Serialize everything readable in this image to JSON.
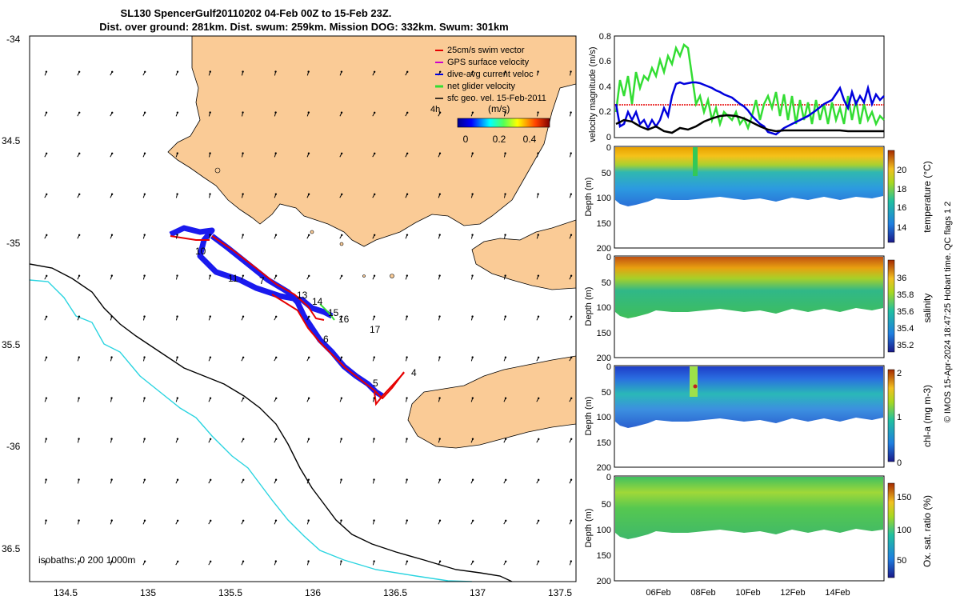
{
  "header": {
    "line1": "SL130 SpencerGulf20110202 04-Feb 00Z to 15-Feb 23Z.",
    "line2": "Dist. over ground: 281km. Dist. swum: 259km. Mission DOG: 332km. Swum: 301km"
  },
  "map": {
    "lon_ticks": [
      "134.5",
      "135",
      "135.5",
      "136",
      "136.5",
      "137",
      "137.5"
    ],
    "lat_ticks": [
      "-34",
      "34.5",
      "-35",
      "35.5",
      "-36",
      "36.5"
    ],
    "isobath_label": "isobaths: 0   200  1000m",
    "legend": [
      {
        "label": "25cm/s swim vector",
        "color": "#e60000"
      },
      {
        "label": "GPS surface velocity",
        "color": "#cc00cc"
      },
      {
        "label": "dive-avg current veloc",
        "color": "#0000dd"
      },
      {
        "label": "net glider velocity",
        "color": "#33dd33"
      },
      {
        "label": "sfc geo. vel. 15-Feb-2011",
        "color": "#000000"
      }
    ],
    "colorbar": {
      "interval": "4h",
      "unit": "(m/s)",
      "ticks": [
        "0",
        "0.2",
        "0.4"
      ]
    },
    "day_labels": [
      "4",
      "5",
      "6",
      "7",
      "10",
      "11",
      "13",
      "14",
      "15",
      "16",
      "17"
    ],
    "colors": {
      "land": "#facb96",
      "isobath_200": "#000000",
      "isobath_1000": "#2ad4e0",
      "glider_track": "#1a1aee"
    }
  },
  "panels": {
    "velocity": {
      "ylabel": "velocity magnitude (m/s)",
      "yticks": [
        "0",
        "0.2",
        "0.4",
        "0.6",
        "0.8"
      ]
    },
    "depth_ylabel": "Depth (m)",
    "depth_ticks": [
      "0",
      "50",
      "100",
      "150",
      "200"
    ],
    "date_ticks": [
      "06Feb",
      "08Feb",
      "10Feb",
      "12Feb",
      "14Feb"
    ],
    "temperature": {
      "label": "temperature (°C)",
      "ticks": [
        "14",
        "16",
        "18",
        "20"
      ]
    },
    "salinity": {
      "label": "salinity",
      "ticks": [
        "35.2",
        "35.4",
        "35.6",
        "35.8",
        "36"
      ]
    },
    "chla": {
      "label": "chl-a (mg m-3)",
      "ticks": [
        "0",
        "1",
        "2"
      ]
    },
    "oxygen": {
      "label": "Ox. sat. ratio (%)",
      "ticks": [
        "50",
        "100",
        "150"
      ]
    }
  },
  "footer": "© IMOS 15-Apr-2024 18:47:25 Hobart time. QC flags 1  2"
}
